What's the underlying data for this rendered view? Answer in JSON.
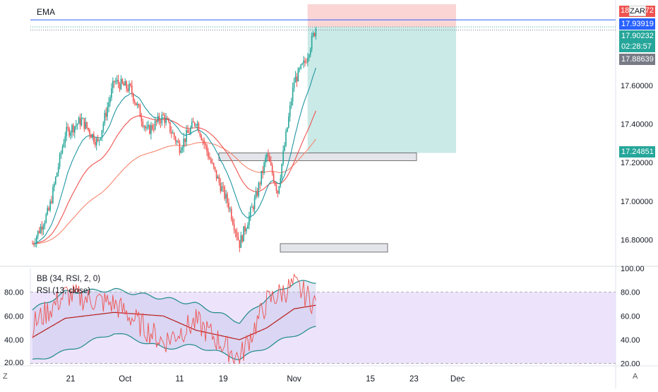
{
  "main_chart": {
    "indicator_label": "EMA",
    "symbol_badge": "ZAR",
    "price_axis_top_partial_left": "18",
    "price_axis_top_partial_right": "72",
    "price_ticks": [
      "17.60000",
      "17.40000",
      "17.20000",
      "17.00000",
      "16.80000"
    ],
    "tags": {
      "ema_line": "17.93919",
      "last_price": "17.90232",
      "countdown": "02:28:57",
      "prev_close": "17.88639",
      "target": "17.24851"
    },
    "colors": {
      "up": "#26a69a",
      "down": "#ef5350",
      "ema_fast": "#2196a3",
      "ema_mid": "#ef5350",
      "ema_slow": "#f5866f",
      "ema_tag_bg": "#2962ff",
      "last_tag_bg": "#26a69a",
      "prev_tag_bg": "#787b86",
      "target_tag_bg": "#26a69a",
      "stop_zone": "#f8c7c6",
      "target_zone": "#b8e3df",
      "rsi_band_fill": "#e9ddfb"
    }
  },
  "chart_data": [
    {
      "type": "candlestick",
      "title": "",
      "y_axis_ticks": [
        17.6,
        17.4,
        17.2,
        17.0,
        16.8
      ],
      "ylim": [
        16.67,
        18.02
      ],
      "x_tick_labels": [
        "21",
        "Oct",
        "11",
        "19",
        "Nov",
        "15",
        "23",
        "Dec"
      ],
      "indicator": "EMA",
      "price_markers": {
        "ema_line": 17.93919,
        "last_price": 17.90232,
        "prev_close": 17.88639,
        "target": 17.24851
      },
      "zones": [
        {
          "name": "stop",
          "from": 17.9,
          "to": 18.02
        },
        {
          "name": "target",
          "from": 17.25,
          "to": 17.9
        },
        {
          "name": "support box low",
          "from": 16.76,
          "to": 16.78
        },
        {
          "name": "support box mid",
          "from": 17.23,
          "to": 17.25
        }
      ],
      "series_anchors": [
        {
          "date": "Sep 14",
          "close": 16.78
        },
        {
          "date": "Sep 17",
          "close": 16.95
        },
        {
          "date": "Sep 20",
          "close": 17.35
        },
        {
          "date": "Sep 23",
          "close": 17.42
        },
        {
          "date": "Sep 26",
          "close": 17.3
        },
        {
          "date": "Sep 29",
          "close": 17.62
        },
        {
          "date": "Oct 2",
          "close": 17.58
        },
        {
          "date": "Oct 5",
          "close": 17.36
        },
        {
          "date": "Oct 8",
          "close": 17.44
        },
        {
          "date": "Oct 11",
          "close": 17.28
        },
        {
          "date": "Oct 14",
          "close": 17.42
        },
        {
          "date": "Oct 17",
          "close": 17.18
        },
        {
          "date": "Oct 20",
          "close": 16.98
        },
        {
          "date": "Oct 22",
          "close": 16.78
        },
        {
          "date": "Oct 25",
          "close": 17.02
        },
        {
          "date": "Oct 27",
          "close": 17.24
        },
        {
          "date": "Oct 29",
          "close": 17.05
        },
        {
          "date": "Nov 1",
          "close": 17.62
        },
        {
          "date": "Nov 3",
          "close": 17.72
        },
        {
          "date": "Nov 5",
          "close": 17.9
        }
      ]
    },
    {
      "type": "line",
      "legend": [
        "BB (34, RSI, 2, 0)",
        "RSI (13, close)"
      ],
      "y_axis_ticks_right": [
        "100.00",
        "80.00",
        "60.00",
        "40.00",
        "20.00"
      ],
      "y_axis_ticks_left": [
        "80.00",
        "60.00",
        "40.00",
        "20.00"
      ],
      "ylim": [
        18,
        100
      ],
      "guide_levels": [
        80,
        20
      ],
      "series_anchors": [
        {
          "date": "Sep 14",
          "rsi": 52,
          "basis": 42,
          "upper": 65,
          "lower": 22
        },
        {
          "date": "Sep 20",
          "rsi": 78,
          "basis": 58,
          "upper": 80,
          "lower": 30
        },
        {
          "date": "Sep 29",
          "rsi": 70,
          "basis": 63,
          "upper": 82,
          "lower": 46
        },
        {
          "date": "Oct 8",
          "rsi": 38,
          "basis": 60,
          "upper": 75,
          "lower": 33
        },
        {
          "date": "Oct 14",
          "rsi": 55,
          "basis": 48,
          "upper": 70,
          "lower": 35
        },
        {
          "date": "Oct 22",
          "rsi": 24,
          "basis": 40,
          "upper": 55,
          "lower": 24
        },
        {
          "date": "Oct 27",
          "rsi": 72,
          "basis": 50,
          "upper": 75,
          "lower": 34
        },
        {
          "date": "Nov 1",
          "rsi": 86,
          "basis": 66,
          "upper": 88,
          "lower": 44
        },
        {
          "date": "Nov 5",
          "rsi": 70,
          "basis": 69,
          "upper": 89,
          "lower": 50
        }
      ]
    }
  ],
  "time_axis": {
    "labels": [
      "21",
      "Oct",
      "11",
      "19",
      "Nov",
      "15",
      "23",
      "Dec"
    ],
    "left_button": "Z",
    "right_button": "A"
  },
  "rsi_panel": {
    "bb_label": "BB (34, RSI, 2, 0)",
    "rsi_label": "RSI (13, close)"
  }
}
